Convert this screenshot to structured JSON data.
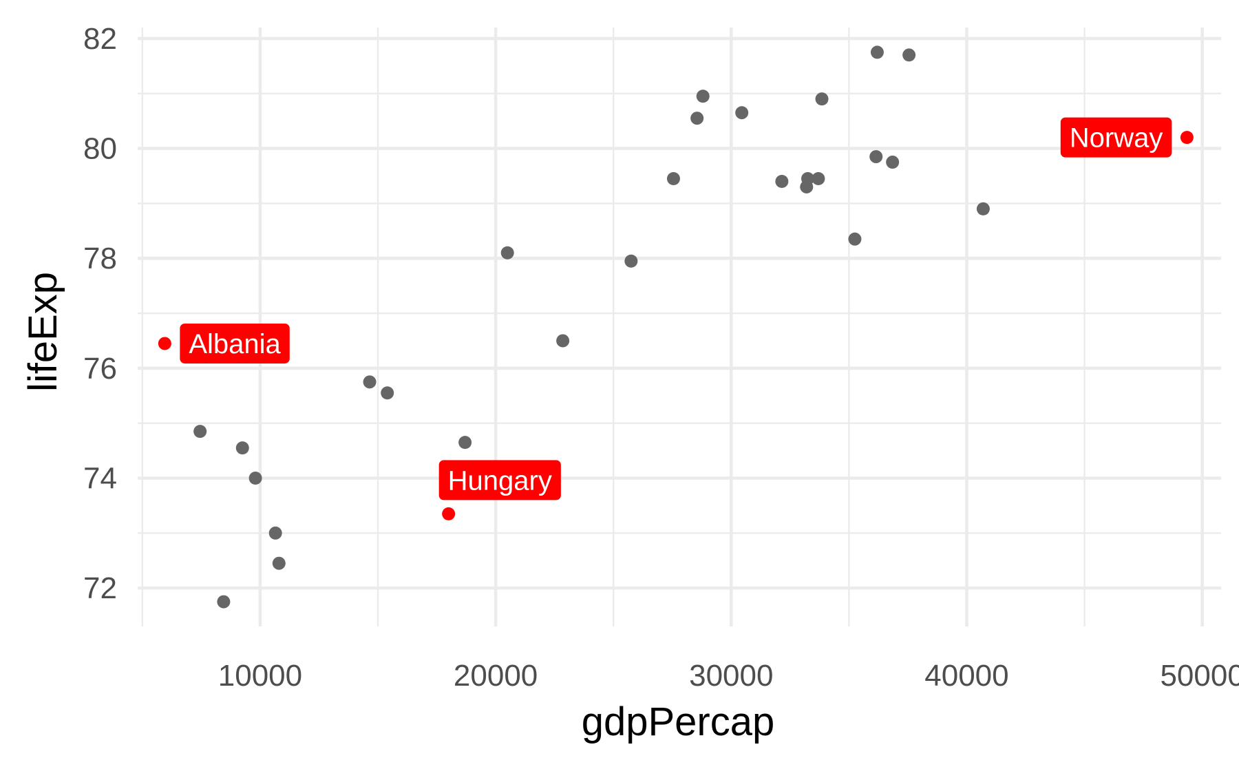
{
  "chart_data": {
    "type": "scatter",
    "xlabel": "gdpPercap",
    "ylabel": "lifeExp",
    "xlim": [
      4800,
      50800
    ],
    "ylim": [
      71.3,
      82.2
    ],
    "x_ticks": [
      10000,
      20000,
      30000,
      40000,
      50000
    ],
    "x_minor_ticks": [
      5000,
      15000,
      25000,
      35000,
      45000
    ],
    "y_ticks": [
      72,
      74,
      76,
      78,
      80,
      82
    ],
    "y_minor_ticks": [
      73,
      75,
      77,
      79,
      81
    ],
    "grid": true,
    "legend": "none",
    "colors": {
      "point": "#666666",
      "highlight": "#ff0000",
      "grid": "#ebebeb",
      "label_text": "#ffffff"
    },
    "points": [
      {
        "x": 8450,
        "y": 71.75
      },
      {
        "x": 7450,
        "y": 74.85
      },
      {
        "x": 9250,
        "y": 74.55
      },
      {
        "x": 9800,
        "y": 74.0
      },
      {
        "x": 10650,
        "y": 73.0
      },
      {
        "x": 10800,
        "y": 72.45
      },
      {
        "x": 14650,
        "y": 75.75
      },
      {
        "x": 15400,
        "y": 75.55
      },
      {
        "x": 18700,
        "y": 74.65
      },
      {
        "x": 20500,
        "y": 78.1
      },
      {
        "x": 22850,
        "y": 76.5
      },
      {
        "x": 25750,
        "y": 77.95
      },
      {
        "x": 27550,
        "y": 79.45
      },
      {
        "x": 28550,
        "y": 80.55
      },
      {
        "x": 28800,
        "y": 80.95
      },
      {
        "x": 30450,
        "y": 80.65
      },
      {
        "x": 32150,
        "y": 79.4
      },
      {
        "x": 33200,
        "y": 79.3
      },
      {
        "x": 33250,
        "y": 79.45
      },
      {
        "x": 33700,
        "y": 79.45
      },
      {
        "x": 33850,
        "y": 80.9
      },
      {
        "x": 35250,
        "y": 78.35
      },
      {
        "x": 36150,
        "y": 79.85
      },
      {
        "x": 36200,
        "y": 81.75
      },
      {
        "x": 36850,
        "y": 79.75
      },
      {
        "x": 37550,
        "y": 81.7
      },
      {
        "x": 40700,
        "y": 78.9
      }
    ],
    "highlighted": [
      {
        "x": 5950,
        "y": 76.45,
        "label": "Albania",
        "label_side": "right"
      },
      {
        "x": 18000,
        "y": 73.35,
        "label": "Hungary",
        "label_side": "above"
      },
      {
        "x": 49350,
        "y": 80.2,
        "label": "Norway",
        "label_side": "left"
      }
    ]
  }
}
